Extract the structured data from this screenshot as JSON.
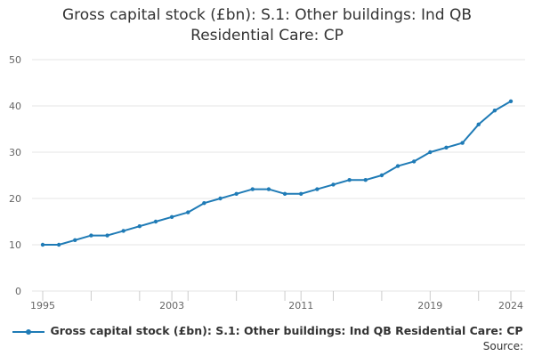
{
  "title_lines": [
    "Gross capital stock (£bn): S.1: Other buildings: Ind QB",
    "Residential Care: CP"
  ],
  "source_label": "Source:",
  "colors": {
    "series": "#1f7bb6",
    "grid": "#e6e6e6",
    "axis": "#cccccc",
    "text": "#666666"
  },
  "chart_data": {
    "type": "line",
    "x": [
      1995,
      1996,
      1997,
      1998,
      1999,
      2000,
      2001,
      2002,
      2003,
      2004,
      2005,
      2006,
      2007,
      2008,
      2009,
      2010,
      2011,
      2012,
      2013,
      2014,
      2015,
      2016,
      2017,
      2018,
      2019,
      2020,
      2021,
      2022,
      2023,
      2024
    ],
    "series": [
      {
        "name": "Gross capital stock (£bn): S.1: Other buildings: Ind QB Residential Care: CP",
        "values": [
          10,
          10,
          11,
          12,
          12,
          13,
          14,
          15,
          16,
          17,
          19,
          20,
          21,
          22,
          22,
          21,
          21,
          22,
          23,
          24,
          24,
          25,
          27,
          28,
          30,
          31,
          32,
          36,
          39,
          41
        ]
      }
    ],
    "x_tick_labels": [
      "1995",
      "2003",
      "2011",
      "2019",
      "2024"
    ],
    "x_tick_values": [
      1995,
      2003,
      2011,
      2019,
      2024
    ],
    "y_ticks": [
      0,
      10,
      20,
      30,
      40,
      50
    ],
    "xlim": [
      1995,
      2024
    ],
    "ylim": [
      0,
      50
    ],
    "grid": true,
    "legend_position": "bottom",
    "xlabel": "",
    "ylabel": ""
  }
}
